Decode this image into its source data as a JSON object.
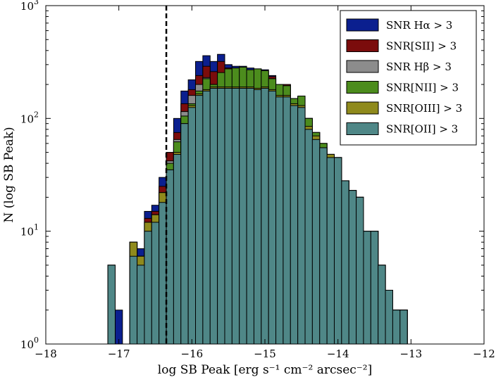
{
  "chart_data": {
    "type": "bar",
    "subtype": "stacked-overlay histogram",
    "title": "",
    "xlabel": "log SB Peak [erg s⁻¹ cm⁻² arcsec⁻²]",
    "ylabel": "N (log SB Peak)",
    "xlim": [
      -18,
      -12
    ],
    "ylim": [
      1,
      1000
    ],
    "yscale": "log",
    "x_ticks": [
      -18,
      -17,
      -16,
      -15,
      -14,
      -13,
      -12
    ],
    "x_tick_labels": [
      "−18",
      "−17",
      "−16",
      "−15",
      "−14",
      "−13",
      "−12"
    ],
    "y_ticks": [
      1,
      10,
      100,
      1000
    ],
    "y_tick_labels": {
      "1": {
        "base": "10",
        "exp": "0"
      },
      "10": {
        "base": "10",
        "exp": "1"
      },
      "100": {
        "base": "10",
        "exp": "2"
      },
      "1000": {
        "base": "10",
        "exp": "3"
      }
    },
    "vline": {
      "x": -16.35,
      "style": "dashed",
      "color": "#000000"
    },
    "legend_position": "top-right",
    "bin_left_edges": [
      -17.15,
      -17.05,
      -16.95,
      -16.85,
      -16.75,
      -16.65,
      -16.55,
      -16.45,
      -16.35,
      -16.25,
      -16.15,
      -16.05,
      -15.95,
      -15.85,
      -15.75,
      -15.65,
      -15.55,
      -15.45,
      -15.35,
      -15.25,
      -15.15,
      -15.05,
      -14.95,
      -14.85,
      -14.75,
      -14.65,
      -14.55,
      -14.45,
      -14.35,
      -14.25,
      -14.15,
      -14.05,
      -13.95,
      -13.85,
      -13.75,
      -13.65,
      -13.55,
      -13.45,
      -13.35,
      -13.25,
      -13.15
    ],
    "bin_width": 0.1,
    "series": [
      {
        "name": "SNR Hα > 3",
        "color": "#0b1f8f",
        "values": [
          5,
          2,
          0,
          8,
          7,
          15,
          17,
          30,
          50,
          100,
          175,
          220,
          320,
          360,
          320,
          370,
          300,
          290,
          290,
          280,
          275,
          270,
          240,
          200,
          200,
          150,
          155,
          100,
          75,
          60,
          48,
          45,
          28,
          23,
          20,
          10,
          10,
          5,
          3,
          2,
          2
        ]
      },
      {
        "name": "SNR[SII] > 3",
        "color": "#7b0c0c",
        "values": [
          5,
          0,
          0,
          8,
          6,
          13,
          15,
          25,
          50,
          75,
          135,
          180,
          240,
          290,
          260,
          320,
          280,
          270,
          270,
          260,
          260,
          260,
          235,
          200,
          200,
          150,
          155,
          100,
          75,
          60,
          48,
          45,
          28,
          23,
          20,
          10,
          10,
          5,
          3,
          2,
          2
        ]
      },
      {
        "name": "SNR Hβ > 3",
        "color": "#8c8c8c",
        "values": [
          5,
          0,
          0,
          8,
          6,
          12,
          14,
          22,
          42,
          65,
          115,
          160,
          200,
          230,
          200,
          250,
          250,
          250,
          250,
          250,
          240,
          240,
          225,
          195,
          195,
          150,
          150,
          100,
          75,
          60,
          48,
          45,
          28,
          23,
          20,
          10,
          10,
          5,
          3,
          2,
          2
        ]
      },
      {
        "name": "SNR[NII] > 3",
        "color": "#4c8c1d",
        "values": [
          5,
          0,
          0,
          8,
          6,
          12,
          14,
          22,
          40,
          62,
          105,
          135,
          175,
          225,
          200,
          255,
          275,
          280,
          285,
          270,
          275,
          265,
          225,
          200,
          195,
          150,
          158,
          100,
          75,
          60,
          48,
          45,
          28,
          23,
          20,
          10,
          10,
          5,
          3,
          2,
          2
        ]
      },
      {
        "name": "SNR[OIII] > 3",
        "color": "#8f8a1c",
        "values": [
          5,
          0,
          0,
          8,
          6,
          12,
          14,
          22,
          35,
          50,
          90,
          130,
          165,
          180,
          190,
          190,
          190,
          190,
          190,
          190,
          185,
          190,
          180,
          160,
          160,
          135,
          130,
          85,
          70,
          55,
          48,
          45,
          28,
          23,
          20,
          10,
          10,
          5,
          3,
          2,
          2
        ]
      },
      {
        "name": "SNR[OII] > 3",
        "color": "#4f8787",
        "values": [
          5,
          0,
          0,
          6,
          5,
          10,
          12,
          18,
          35,
          48,
          90,
          125,
          160,
          175,
          185,
          185,
          185,
          185,
          185,
          185,
          180,
          185,
          175,
          155,
          155,
          130,
          125,
          80,
          65,
          55,
          45,
          45,
          28,
          23,
          20,
          10,
          10,
          5,
          3,
          2,
          2
        ]
      }
    ]
  }
}
